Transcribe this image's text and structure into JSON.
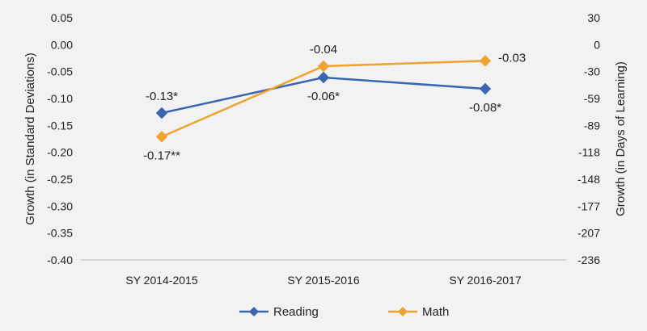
{
  "chart_data": {
    "type": "line",
    "categories": [
      "SY 2014-2015",
      "SY 2015-2016",
      "SY 2016-2017"
    ],
    "series": [
      {
        "name": "Reading",
        "values": [
          -0.127,
          -0.061,
          -0.082
        ],
        "labels": [
          "-0.13*",
          "-0.06*",
          "-0.08*"
        ],
        "color": "#3a66b0",
        "label_side": [
          "above",
          "below",
          "below"
        ]
      },
      {
        "name": "Math",
        "values": [
          -0.171,
          -0.04,
          -0.03
        ],
        "labels": [
          "-0.17**",
          "-0.04",
          "-0.03"
        ],
        "color": "#f0a22e",
        "label_side": [
          "below",
          "above",
          "right"
        ]
      }
    ],
    "ylabel": "Growth (in Standard Deviations)",
    "y2label": "Growth (in Days of Learning)",
    "ylim": [
      -0.4,
      0.05
    ],
    "yticks": [
      "0.05",
      "0.00",
      "-0.05",
      "-0.10",
      "-0.15",
      "-0.20",
      "-0.25",
      "-0.30",
      "-0.35",
      "-0.40"
    ],
    "y2ticks": [
      "30",
      "0",
      "-30",
      "-59",
      "-89",
      "-118",
      "-148",
      "-177",
      "-207",
      "-236"
    ],
    "grid": false,
    "legend_position": "bottom"
  }
}
